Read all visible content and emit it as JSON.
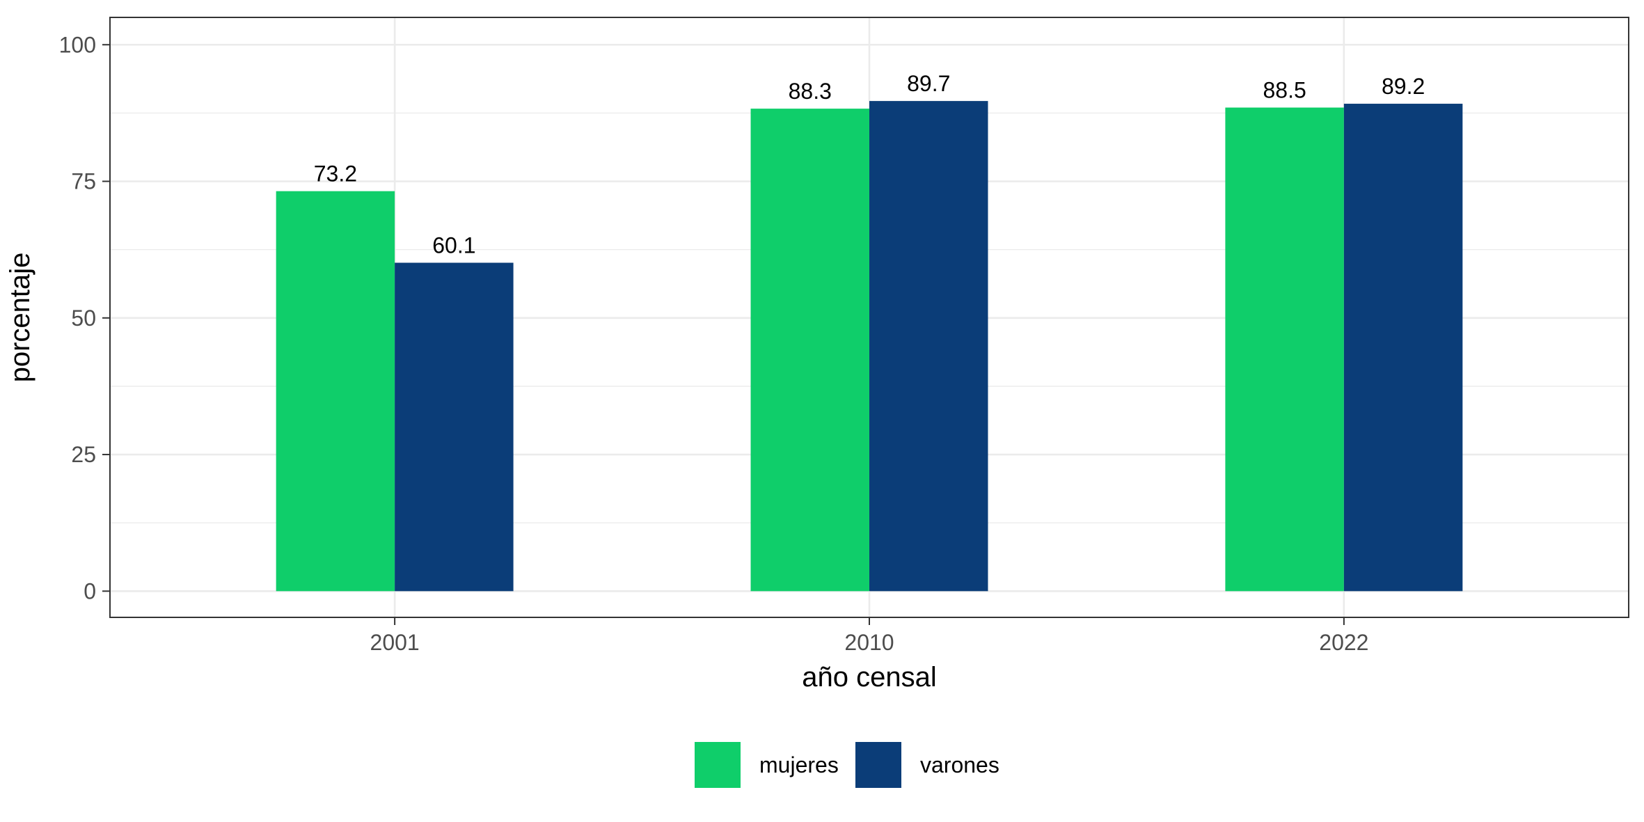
{
  "chart_data": {
    "type": "bar",
    "categories": [
      "2001",
      "2010",
      "2022"
    ],
    "series": [
      {
        "name": "mujeres",
        "values": [
          73.2,
          88.3,
          88.5
        ],
        "color": "#0fce6a"
      },
      {
        "name": "varones",
        "values": [
          60.1,
          89.7,
          89.2
        ],
        "color": "#0b3d78"
      }
    ],
    "data_labels": [
      [
        "73.2",
        "88.3",
        "88.5"
      ],
      [
        "60.1",
        "89.7",
        "89.2"
      ]
    ],
    "xlabel": "año censal",
    "ylabel": "porcentaje",
    "ylim": [
      -4.8,
      105
    ],
    "yticks": [
      0,
      25,
      50,
      75,
      100
    ],
    "grid": true,
    "legend_position": "bottom",
    "colors": {
      "grid": "#ebebeb",
      "panel_border": "#333333",
      "tick_text": "#4d4d4d"
    }
  }
}
